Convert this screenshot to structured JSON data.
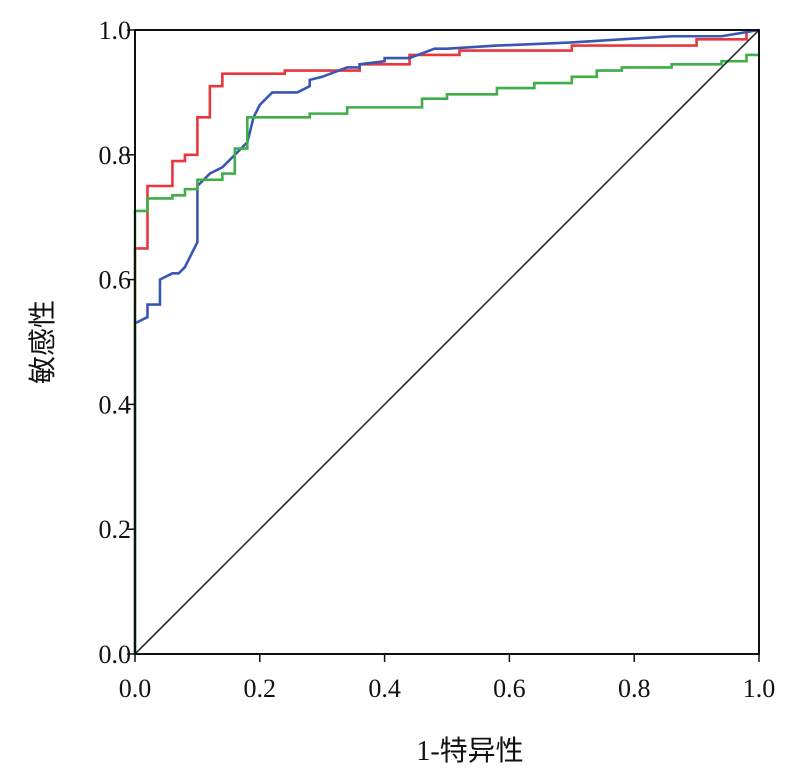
{
  "chart_data": {
    "type": "line",
    "title": "",
    "xlabel": "1-特异性",
    "ylabel": "敏感性",
    "xlim": [
      0,
      1
    ],
    "ylim": [
      0,
      1
    ],
    "xticks": [
      "0.0",
      "0.2",
      "0.4",
      "0.6",
      "0.8",
      "1.0"
    ],
    "yticks": [
      "0.0",
      "0.2",
      "0.4",
      "0.6",
      "0.8",
      "1.0"
    ],
    "grid": false,
    "legend": "none",
    "series": [
      {
        "color": "#e8373d",
        "x": [
          0.0,
          0.0,
          0.02,
          0.02,
          0.06,
          0.06,
          0.08,
          0.08,
          0.1,
          0.1,
          0.12,
          0.12,
          0.14,
          0.14,
          0.24,
          0.24,
          0.36,
          0.36,
          0.44,
          0.44,
          0.52,
          0.52,
          0.7,
          0.7,
          0.9,
          0.9,
          0.98,
          0.98
        ],
        "y": [
          0.0,
          0.65,
          0.65,
          0.75,
          0.75,
          0.79,
          0.79,
          0.8,
          0.8,
          0.86,
          0.86,
          0.91,
          0.91,
          0.93,
          0.93,
          0.935,
          0.935,
          0.945,
          0.945,
          0.96,
          0.96,
          0.967,
          0.967,
          0.975,
          0.975,
          0.985,
          0.985,
          1.0
        ]
      },
      {
        "color": "#3a56b4",
        "x": [
          0.0,
          0.0,
          0.02,
          0.02,
          0.04,
          0.04,
          0.06,
          0.07,
          0.08,
          0.09,
          0.1,
          0.1,
          0.12,
          0.14,
          0.16,
          0.17,
          0.18,
          0.19,
          0.2,
          0.22,
          0.24,
          0.26,
          0.28,
          0.28,
          0.3,
          0.34,
          0.36,
          0.36,
          0.4,
          0.4,
          0.44,
          0.48,
          0.5,
          0.58,
          0.7,
          0.86,
          0.94,
          1.0
        ],
        "y": [
          0.0,
          0.53,
          0.54,
          0.56,
          0.56,
          0.6,
          0.61,
          0.61,
          0.62,
          0.64,
          0.66,
          0.75,
          0.77,
          0.78,
          0.8,
          0.81,
          0.82,
          0.86,
          0.88,
          0.9,
          0.9,
          0.9,
          0.91,
          0.92,
          0.925,
          0.94,
          0.94,
          0.945,
          0.95,
          0.955,
          0.955,
          0.97,
          0.97,
          0.975,
          0.98,
          0.99,
          0.99,
          1.0
        ]
      },
      {
        "color": "#3fae49",
        "x": [
          0.0,
          0.0,
          0.02,
          0.02,
          0.06,
          0.06,
          0.08,
          0.08,
          0.1,
          0.1,
          0.14,
          0.14,
          0.16,
          0.16,
          0.18,
          0.18,
          0.28,
          0.28,
          0.34,
          0.34,
          0.46,
          0.46,
          0.5,
          0.5,
          0.58,
          0.58,
          0.64,
          0.64,
          0.7,
          0.7,
          0.74,
          0.74,
          0.78,
          0.78,
          0.86,
          0.86,
          0.94,
          0.94,
          0.98,
          0.98,
          1.0
        ],
        "y": [
          0.0,
          0.71,
          0.71,
          0.73,
          0.73,
          0.735,
          0.735,
          0.745,
          0.745,
          0.76,
          0.76,
          0.77,
          0.77,
          0.81,
          0.81,
          0.86,
          0.86,
          0.866,
          0.866,
          0.876,
          0.876,
          0.89,
          0.89,
          0.897,
          0.897,
          0.907,
          0.907,
          0.915,
          0.915,
          0.925,
          0.925,
          0.935,
          0.935,
          0.94,
          0.94,
          0.945,
          0.945,
          0.95,
          0.95,
          0.96,
          0.96
        ]
      },
      {
        "color": "#1a1a1a",
        "x": [
          0,
          1
        ],
        "y": [
          0,
          1
        ]
      }
    ]
  }
}
